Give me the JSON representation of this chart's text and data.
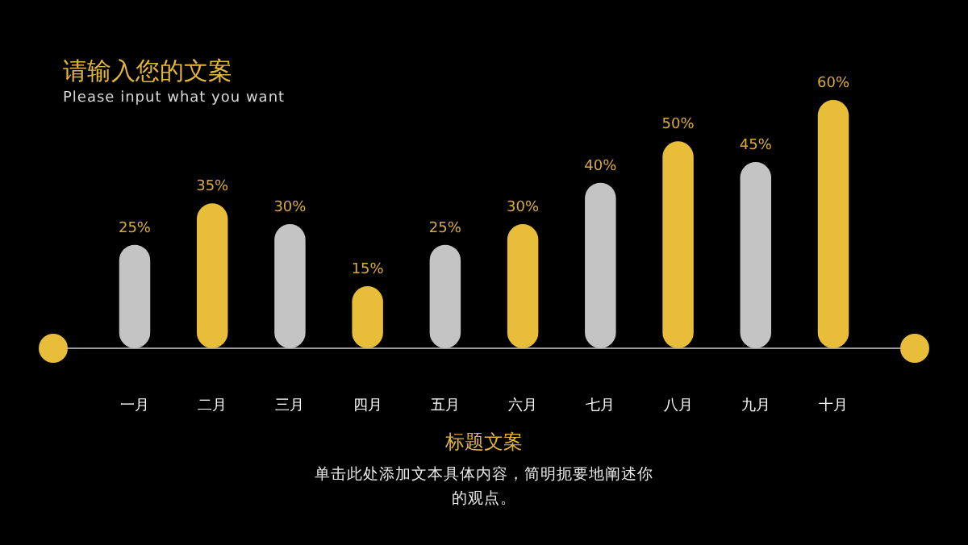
{
  "chart_data": {
    "type": "bar",
    "title": "请输入您的文案",
    "subtitle": "Please input what you want",
    "categories": [
      "一月",
      "二月",
      "三月",
      "四月",
      "五月",
      "六月",
      "七月",
      "八月",
      "九月",
      "十月"
    ],
    "values": [
      25,
      35,
      30,
      15,
      25,
      30,
      40,
      50,
      45,
      60
    ],
    "colors": [
      "#c4c4c4",
      "#e8bd3a",
      "#c4c4c4",
      "#e8bd3a",
      "#c4c4c4",
      "#e8bd3a",
      "#c4c4c4",
      "#e8bd3a",
      "#c4c4c4",
      "#e8bd3a"
    ],
    "value_labels": [
      "25%",
      "35%",
      "30%",
      "15%",
      "25%",
      "30%",
      "40%",
      "50%",
      "45%",
      "60%"
    ],
    "ylim": [
      0,
      60
    ],
    "tick_labels": "x",
    "annotations": [
      "标题文案",
      "单击此处添加文本具体内容，简明扼要地阐述你的观点。"
    ]
  }
}
